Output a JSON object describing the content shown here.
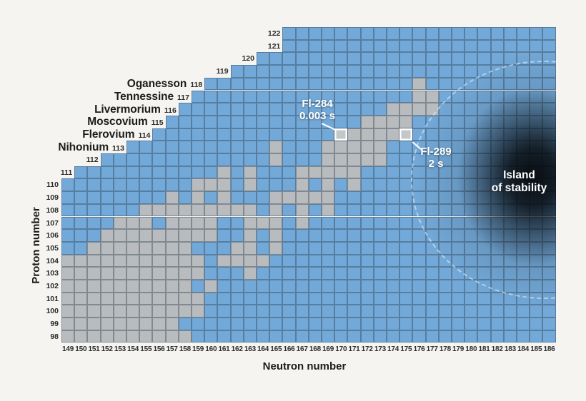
{
  "axis": {
    "x_label": "Neutron number",
    "y_label": "Proton number"
  },
  "annotations": {
    "fl284": {
      "line1": "Fl-284",
      "line2": "0.003 s"
    },
    "fl289": {
      "line1": "Fl-289",
      "line2": "2 s"
    },
    "island": {
      "line1": "Island",
      "line2": "of stability"
    }
  },
  "colors": {
    "background": "#f5f4f1",
    "cell_blue": "#73a9d8",
    "cell_known_gray": "#b9bcbe",
    "grid_line": "#2c3c4c",
    "highlight_border": "#ffffff",
    "island_core": "#000000",
    "annotation_text": "#ffffff",
    "label_text": "#1c1c1a"
  },
  "chart_data": {
    "type": "heatmap",
    "xlabel": "Neutron number",
    "ylabel": "Proton number",
    "n_min": 149,
    "n_max": 186,
    "z_min": 98,
    "z_max": 122,
    "x_ticks": [
      149,
      150,
      151,
      152,
      153,
      154,
      155,
      156,
      157,
      158,
      159,
      160,
      161,
      162,
      163,
      164,
      165,
      166,
      167,
      168,
      169,
      170,
      171,
      172,
      173,
      174,
      175,
      176,
      177,
      178,
      179,
      180,
      181,
      182,
      183,
      184,
      185,
      186
    ],
    "y_ticks": [
      98,
      99,
      100,
      101,
      102,
      103,
      104,
      105,
      106,
      107,
      108,
      109,
      110,
      111,
      112,
      113,
      114,
      115,
      116,
      117,
      118,
      119,
      120,
      121,
      122
    ],
    "rows": [
      {
        "z": 122,
        "n_start": 166,
        "known": []
      },
      {
        "z": 121,
        "n_start": 166,
        "known": []
      },
      {
        "z": 120,
        "n_start": 164,
        "known": []
      },
      {
        "z": 119,
        "n_start": 162,
        "known": []
      },
      {
        "z": 118,
        "n_start": 160,
        "element": "Oganesson",
        "known": [
          176
        ]
      },
      {
        "z": 117,
        "n_start": 159,
        "element": "Tennessine",
        "known": [
          176,
          177
        ]
      },
      {
        "z": 116,
        "n_start": 158,
        "element": "Livermorium",
        "known": [
          174,
          175,
          176,
          177
        ]
      },
      {
        "z": 115,
        "n_start": 157,
        "element": "Moscovium",
        "known": [
          172,
          173,
          174,
          175
        ]
      },
      {
        "z": 114,
        "n_start": 156,
        "element": "Flerovium",
        "known": [
          170,
          171,
          172,
          173,
          174,
          175
        ]
      },
      {
        "z": 113,
        "n_start": 154,
        "element": "Nihonium",
        "known": [
          165,
          169,
          170,
          171,
          172,
          173
        ]
      },
      {
        "z": 112,
        "n_start": 152,
        "known": [
          165,
          169,
          170,
          171,
          172,
          173
        ]
      },
      {
        "z": 111,
        "n_start": 150,
        "known": [
          161,
          163,
          167,
          168,
          169,
          170,
          171
        ]
      },
      {
        "z": 110,
        "n_start": 149,
        "known": [
          159,
          160,
          161,
          163,
          167,
          169,
          171
        ]
      },
      {
        "z": 109,
        "n_start": 149,
        "known": [
          157,
          159,
          161,
          165,
          166,
          167,
          168,
          169
        ]
      },
      {
        "z": 108,
        "n_start": 149,
        "known": [
          155,
          156,
          157,
          158,
          159,
          160,
          161,
          162,
          163,
          165,
          167,
          169
        ]
      },
      {
        "z": 107,
        "n_start": 149,
        "known": [
          153,
          154,
          155,
          157,
          158,
          159,
          160,
          163,
          164,
          165,
          167
        ]
      },
      {
        "z": 106,
        "n_start": 149,
        "known": [
          152,
          153,
          154,
          155,
          156,
          157,
          158,
          159,
          160,
          163,
          165
        ]
      },
      {
        "z": 105,
        "n_start": 149,
        "known": [
          151,
          152,
          153,
          154,
          155,
          156,
          157,
          158,
          162,
          163,
          165
        ]
      },
      {
        "z": 104,
        "n_start": 149,
        "known": [
          149,
          150,
          151,
          152,
          153,
          154,
          155,
          156,
          157,
          158,
          159,
          161,
          162,
          163,
          164
        ]
      },
      {
        "z": 103,
        "n_start": 149,
        "known": [
          149,
          150,
          151,
          152,
          153,
          154,
          155,
          156,
          157,
          158,
          159,
          163
        ]
      },
      {
        "z": 102,
        "n_start": 149,
        "known": [
          149,
          150,
          151,
          152,
          153,
          154,
          155,
          156,
          157,
          158,
          160
        ]
      },
      {
        "z": 101,
        "n_start": 149,
        "known": [
          149,
          150,
          151,
          152,
          153,
          154,
          155,
          156,
          157,
          158,
          159
        ]
      },
      {
        "z": 100,
        "n_start": 149,
        "known": [
          149,
          150,
          151,
          152,
          153,
          154,
          155,
          156,
          157,
          158,
          159
        ]
      },
      {
        "z": 99,
        "n_start": 149,
        "known": [
          149,
          150,
          151,
          152,
          153,
          154,
          155,
          156,
          157
        ]
      },
      {
        "z": 98,
        "n_start": 149,
        "known": [
          149,
          150,
          151,
          152,
          153,
          154,
          155,
          156,
          157,
          158
        ]
      }
    ],
    "highlighted": [
      {
        "z": 114,
        "n": 170,
        "label": "Fl-284",
        "half_life": "0.003 s"
      },
      {
        "z": 114,
        "n": 175,
        "label": "Fl-289",
        "half_life": "2 s"
      }
    ],
    "legend_position": "none",
    "grid": true
  }
}
